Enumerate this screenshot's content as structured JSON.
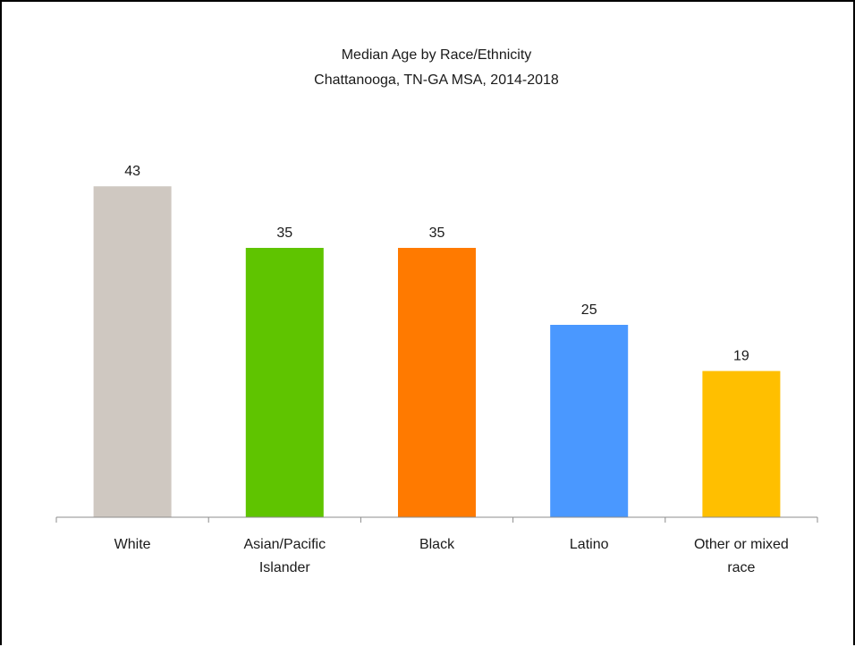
{
  "chart_data": {
    "type": "bar",
    "title": "Median Age by Race/Ethnicity",
    "subtitle": "Chattanooga, TN-GA MSA, 2014-2018",
    "xlabel": "",
    "ylabel": "",
    "categories": [
      "White",
      "Asian/Pacific Islander",
      "Black",
      "Latino",
      "Other or mixed race"
    ],
    "category_lines": [
      [
        "White"
      ],
      [
        "Asian/Pacific",
        "Islander"
      ],
      [
        "Black"
      ],
      [
        "Latino"
      ],
      [
        "Other or mixed",
        "race"
      ]
    ],
    "values": [
      43,
      35,
      35,
      25,
      19
    ],
    "data_labels": [
      "43",
      "35",
      "35",
      "25",
      "19"
    ],
    "colors": [
      "#CFC8C1",
      "#5FC400",
      "#FF7A00",
      "#4A98FF",
      "#FFBF00"
    ],
    "ylim": [
      0,
      48
    ],
    "grid": false,
    "legend": "none"
  }
}
